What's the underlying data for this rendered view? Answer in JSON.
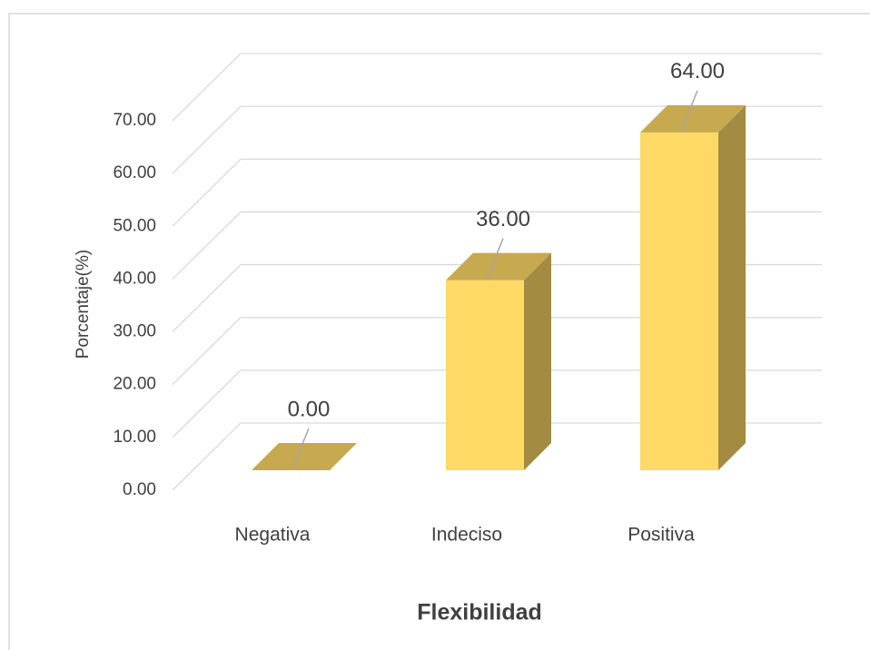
{
  "chart_data": {
    "type": "bar3d",
    "x_label": "Flexibilidad",
    "y_label": "Porcentaje(%)",
    "categories": [
      "Negativa",
      "Indeciso",
      "Positiva"
    ],
    "values": [
      0,
      36,
      64
    ],
    "value_labels": [
      "0.00",
      "36.00",
      "64.00"
    ],
    "color": "#ffd966",
    "ylim": [
      0,
      70
    ],
    "yticks": [
      {
        "value": 0,
        "label": "0.00"
      },
      {
        "value": 10,
        "label": "10.00"
      },
      {
        "value": 20,
        "label": "20.00"
      },
      {
        "value": 30,
        "label": "30.00"
      },
      {
        "value": 40,
        "label": "40.00"
      },
      {
        "value": 50,
        "label": "50.00"
      },
      {
        "value": 60,
        "label": "60.00"
      },
      {
        "value": 70,
        "label": "70.00"
      }
    ],
    "grid": true
  }
}
